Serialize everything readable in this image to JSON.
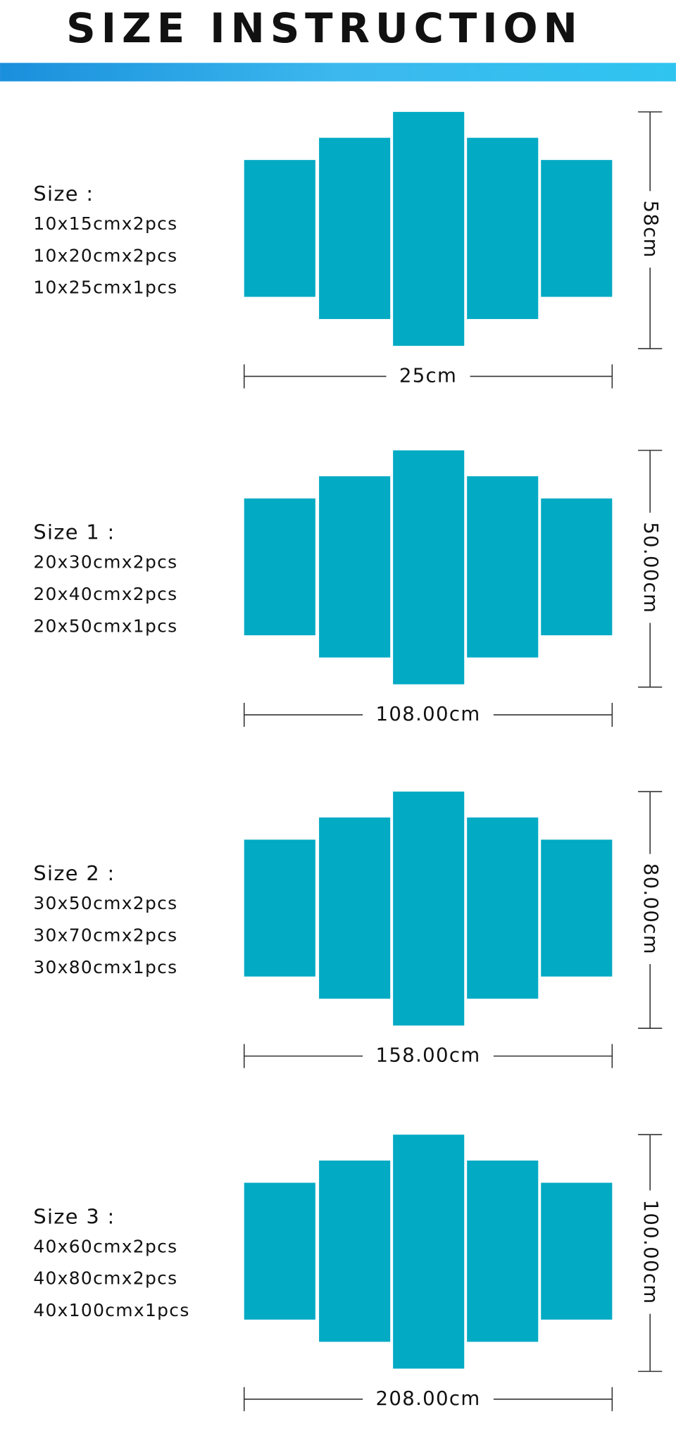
{
  "title": "SIZE INSTRUCTION",
  "sections": [
    {
      "label": "Size :",
      "sizes": [
        "10x15cmx2pcs",
        "10x20cmx2pcs",
        "10x25cmx1pcs"
      ],
      "width": "25cm",
      "height": "58cm"
    },
    {
      "label": "Size 1 :",
      "sizes": [
        "20x30cmx2pcs",
        "20x40cmx2pcs",
        "20x50cmx1pcs"
      ],
      "width": "108.00cm",
      "height": "50.00cm"
    },
    {
      "label": "Size 2 :",
      "sizes": [
        "30x50cmx2pcs",
        "30x70cmx2pcs",
        "30x80cmx1pcs"
      ],
      "width": "158.00cm",
      "height": "80.00cm"
    },
    {
      "label": "Size 3 :",
      "sizes": [
        "40x60cmx2pcs",
        "40x80cmx2pcs",
        "40x100cmx1pcs"
      ],
      "width": "208.00cm",
      "height": "100.00cm"
    }
  ]
}
